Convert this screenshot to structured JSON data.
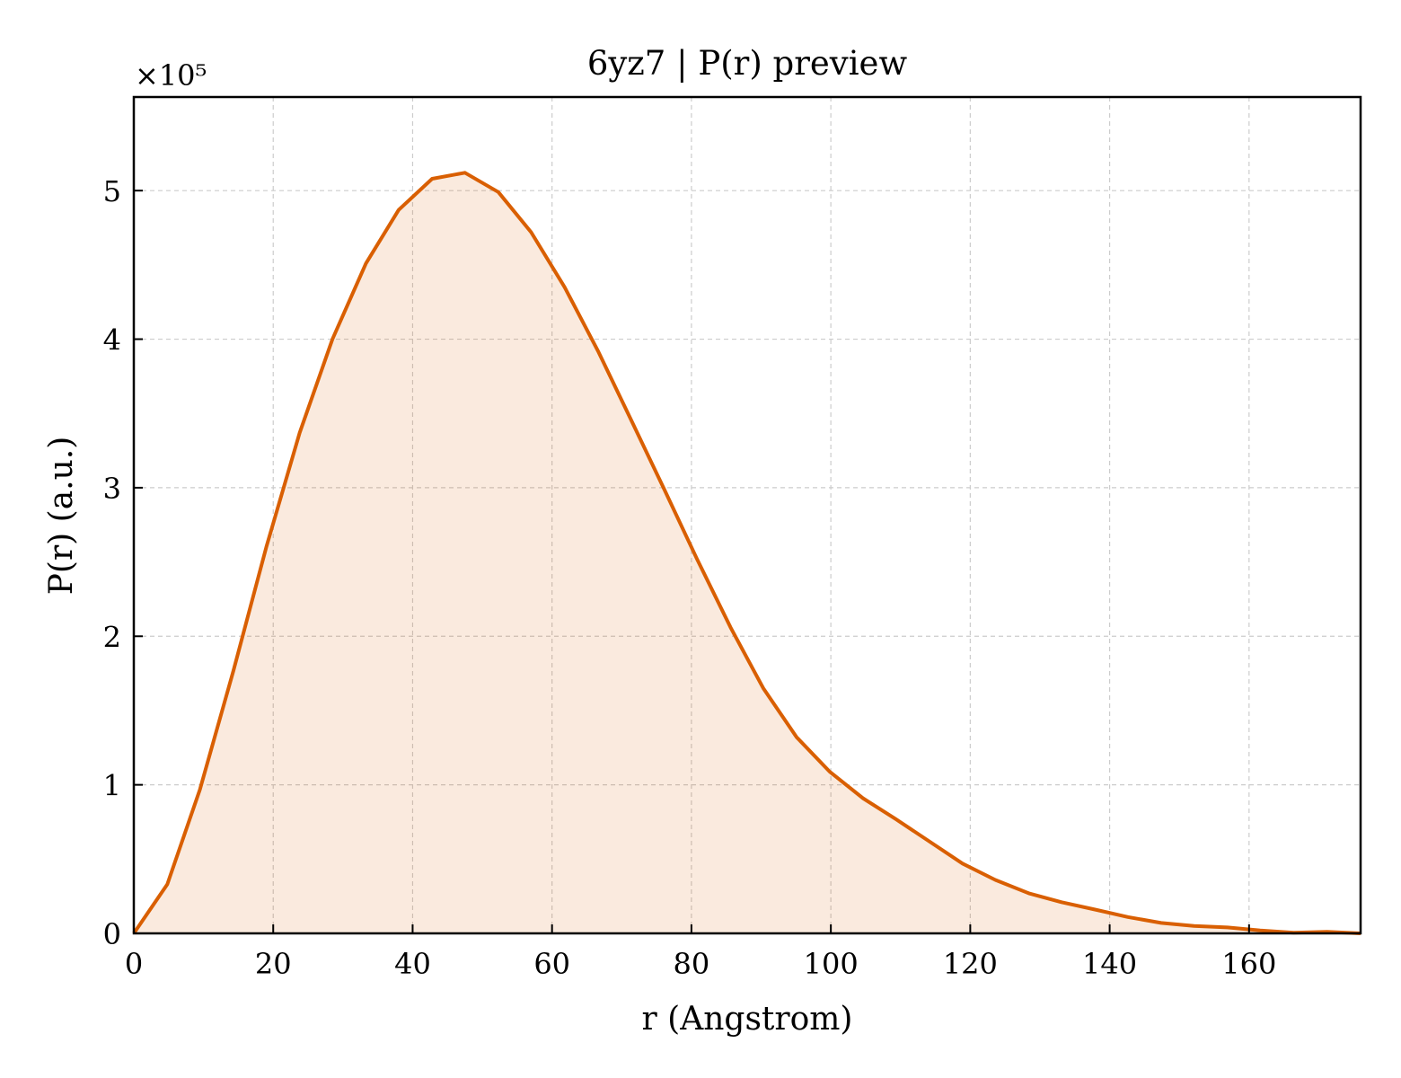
{
  "chart_data": {
    "type": "area",
    "title": "6yz7 | P(r) preview",
    "xlabel": "r (Angstrom)",
    "ylabel": "P(r) (a.u.)",
    "y_multiplier_label": "×10⁵",
    "y_scale_factor": 100000,
    "xlim": [
      0,
      176
    ],
    "ylim": [
      0,
      5.63
    ],
    "x_ticks": [
      0,
      20,
      40,
      60,
      80,
      100,
      120,
      140,
      160
    ],
    "x_tick_labels": [
      "0",
      "20",
      "40",
      "60",
      "80",
      "100",
      "120",
      "140",
      "160"
    ],
    "y_ticks": [
      0,
      1,
      2,
      3,
      4,
      5
    ],
    "y_tick_labels": [
      "0",
      "1",
      "2",
      "3",
      "4",
      "5"
    ],
    "grid": true,
    "line_color": "#d95f02",
    "fill_color": "#d95f02",
    "fill_opacity": 0.13,
    "series": [
      {
        "x": [
          0,
          4.8,
          9.5,
          14.3,
          19.0,
          23.8,
          28.5,
          33.3,
          38.0,
          42.8,
          47.5,
          52.3,
          57.0,
          61.8,
          66.6,
          71.3,
          76.1,
          80.8,
          85.6,
          90.3,
          95.1,
          99.8,
          104.6,
          109.3,
          114.1,
          118.9,
          123.6,
          128.4,
          133.1,
          137.9,
          142.6,
          147.4,
          152.1,
          156.9,
          161.6,
          166.4,
          171.2,
          176.0
        ],
        "y": [
          0,
          0.33,
          0.97,
          1.77,
          2.6,
          3.37,
          4.0,
          4.51,
          4.87,
          5.08,
          5.12,
          4.99,
          4.72,
          4.35,
          3.92,
          3.46,
          2.99,
          2.52,
          2.06,
          1.65,
          1.32,
          1.09,
          0.91,
          0.77,
          0.62,
          0.47,
          0.36,
          0.27,
          0.21,
          0.16,
          0.11,
          0.07,
          0.05,
          0.04,
          0.02,
          0.005,
          0.01,
          0.0
        ]
      }
    ]
  }
}
